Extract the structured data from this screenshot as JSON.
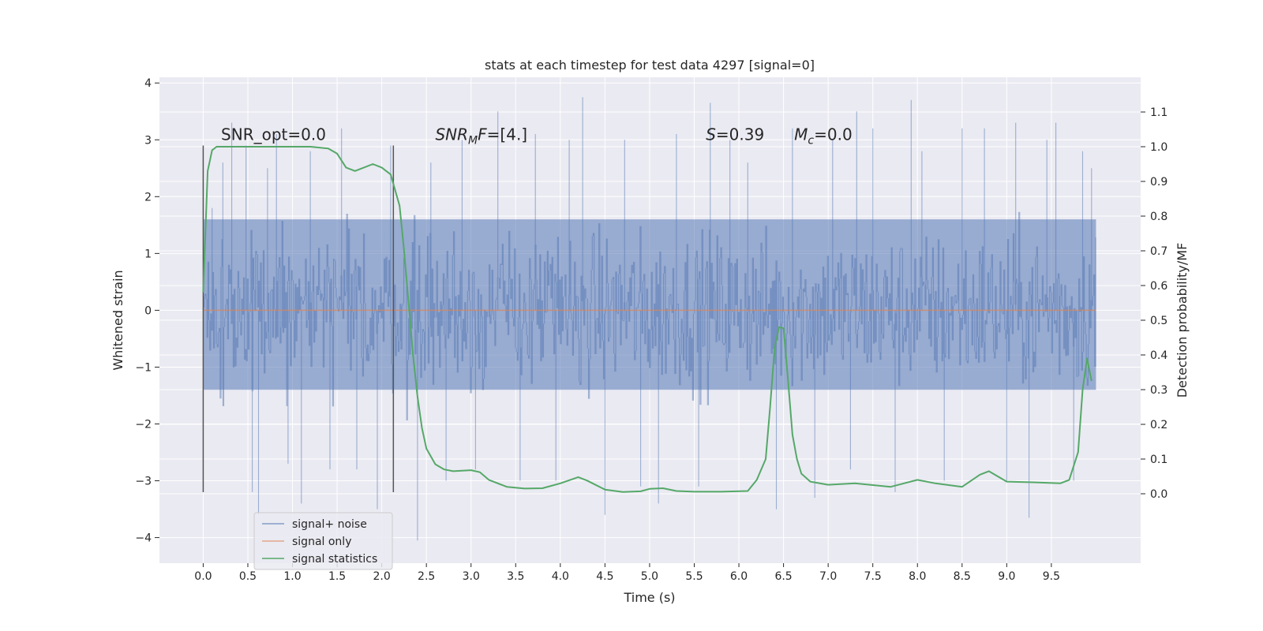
{
  "chart_data": {
    "type": "line",
    "title": "stats at each timestep for test data 4297 [signal=0]",
    "xlabel": "Time (s)",
    "ylabel": "Whitened strain",
    "ylabel_right": "Detection probability/MF",
    "xlim": [
      -0.49,
      10.5
    ],
    "ylim": [
      -4.45,
      4.1
    ],
    "ylim_right": [
      -0.2,
      1.2
    ],
    "x_ticks": [
      "0.0",
      "0.5",
      "1.0",
      "1.5",
      "2.0",
      "2.5",
      "3.0",
      "3.5",
      "4.0",
      "4.5",
      "5.0",
      "5.5",
      "6.0",
      "6.5",
      "7.0",
      "7.5",
      "8.0",
      "8.5",
      "9.0",
      "9.5"
    ],
    "y_ticks_left": [
      "4",
      "3",
      "2",
      "1",
      "0",
      "−1",
      "−2",
      "−3",
      "−4"
    ],
    "y_ticks_right": [
      "1.1",
      "1.0",
      "0.9",
      "0.8",
      "0.7",
      "0.6",
      "0.5",
      "0.4",
      "0.3",
      "0.2",
      "0.1",
      "0.0"
    ],
    "grid": true,
    "legend_placement": "lower-left",
    "annotations": [
      {
        "parts": [
          {
            "t": "SNR_opt=0.0",
            "i": false
          }
        ],
        "x": 0.2,
        "y": 3.0
      },
      {
        "parts": [
          {
            "t": "SNR",
            "i": true
          },
          {
            "t": "M",
            "i": true,
            "sub": true
          },
          {
            "t": "F",
            "i": true
          },
          {
            "t": "=[4.]",
            "i": false
          }
        ],
        "x": 2.6,
        "y": 3.0
      },
      {
        "parts": [
          {
            "t": "S",
            "i": true
          },
          {
            "t": "=0.39",
            "i": false
          }
        ],
        "x": 5.63,
        "y": 3.0
      },
      {
        "parts": [
          {
            "t": "M",
            "i": true
          },
          {
            "t": "c",
            "i": true,
            "sub": true
          },
          {
            "t": "=0.0",
            "i": false
          }
        ],
        "x": 6.62,
        "y": 3.0
      }
    ],
    "vlines": [
      {
        "x": 0.0,
        "ymin": -3.2,
        "ymax": 2.9
      },
      {
        "x": 2.13,
        "ymin": -3.2,
        "ymax": 2.9
      }
    ],
    "series": [
      {
        "name": "signal+ noise",
        "axis": "left",
        "color": "#4c72b0",
        "note": "noise band",
        "core_band": [
          -1.4,
          1.6
        ],
        "t_range": [
          0.0,
          10.0
        ],
        "spikes": [
          [
            0.1,
            1.8
          ],
          [
            0.22,
            2.6
          ],
          [
            0.32,
            3.3
          ],
          [
            0.48,
            2.9
          ],
          [
            0.55,
            -3.2
          ],
          [
            0.62,
            -3.6
          ],
          [
            0.72,
            2.5
          ],
          [
            0.82,
            3.1
          ],
          [
            0.95,
            -2.7
          ],
          [
            1.1,
            -3.4
          ],
          [
            1.2,
            2.8
          ],
          [
            1.42,
            -2.8
          ],
          [
            1.55,
            3.2
          ],
          [
            1.72,
            -2.8
          ],
          [
            1.95,
            -3.5
          ],
          [
            2.1,
            2.9
          ],
          [
            2.4,
            -4.05
          ],
          [
            2.55,
            2.6
          ],
          [
            2.72,
            -3.0
          ],
          [
            2.9,
            3.0
          ],
          [
            3.05,
            -2.8
          ],
          [
            3.3,
            3.5
          ],
          [
            3.55,
            -3.0
          ],
          [
            3.72,
            3.1
          ],
          [
            3.95,
            -3.0
          ],
          [
            4.1,
            3.0
          ],
          [
            4.25,
            3.75
          ],
          [
            4.5,
            -3.6
          ],
          [
            4.72,
            3.0
          ],
          [
            4.9,
            -3.1
          ],
          [
            5.1,
            -3.4
          ],
          [
            5.3,
            3.1
          ],
          [
            5.55,
            -3.1
          ],
          [
            5.68,
            3.65
          ],
          [
            5.9,
            3.0
          ],
          [
            6.1,
            2.6
          ],
          [
            6.42,
            -3.5
          ],
          [
            6.6,
            3.2
          ],
          [
            6.85,
            -3.3
          ],
          [
            7.05,
            3.0
          ],
          [
            7.25,
            -2.8
          ],
          [
            7.32,
            3.5
          ],
          [
            7.5,
            3.2
          ],
          [
            7.75,
            -3.2
          ],
          [
            7.93,
            3.7
          ],
          [
            8.05,
            2.8
          ],
          [
            8.3,
            -3.0
          ],
          [
            8.5,
            3.2
          ],
          [
            8.75,
            3.2
          ],
          [
            9.0,
            -3.0
          ],
          [
            9.1,
            3.3
          ],
          [
            9.25,
            -3.65
          ],
          [
            9.45,
            3.0
          ],
          [
            9.55,
            3.3
          ],
          [
            9.75,
            -3.0
          ],
          [
            9.85,
            2.8
          ],
          [
            9.95,
            2.5
          ]
        ]
      },
      {
        "name": "signal only",
        "axis": "left",
        "color": "#dd8452",
        "x": [
          0.0,
          10.0
        ],
        "y": [
          0.0,
          0.0
        ]
      },
      {
        "name": "signal statistics",
        "axis": "right",
        "color": "#55a868",
        "x": [
          0.0,
          0.05,
          0.1,
          0.15,
          0.25,
          0.4,
          0.6,
          0.8,
          1.0,
          1.2,
          1.4,
          1.5,
          1.6,
          1.7,
          1.8,
          1.9,
          2.0,
          2.1,
          2.2,
          2.25,
          2.3,
          2.35,
          2.4,
          2.45,
          2.5,
          2.6,
          2.7,
          2.8,
          3.0,
          3.1,
          3.2,
          3.4,
          3.6,
          3.8,
          4.0,
          4.2,
          4.3,
          4.5,
          4.7,
          4.9,
          5.0,
          5.15,
          5.3,
          5.5,
          5.8,
          6.1,
          6.2,
          6.3,
          6.35,
          6.4,
          6.45,
          6.5,
          6.55,
          6.6,
          6.65,
          6.7,
          6.8,
          7.0,
          7.3,
          7.7,
          8.0,
          8.2,
          8.5,
          8.7,
          8.8,
          9.0,
          9.3,
          9.6,
          9.7,
          9.8,
          9.85,
          9.9,
          9.95
        ],
        "y": [
          0.58,
          0.93,
          0.99,
          1.0,
          1.0,
          1.0,
          1.0,
          1.0,
          1.0,
          1.0,
          0.995,
          0.98,
          0.94,
          0.93,
          0.94,
          0.95,
          0.94,
          0.92,
          0.83,
          0.7,
          0.55,
          0.4,
          0.28,
          0.19,
          0.13,
          0.085,
          0.07,
          0.065,
          0.068,
          0.062,
          0.04,
          0.02,
          0.015,
          0.016,
          0.03,
          0.048,
          0.038,
          0.012,
          0.005,
          0.007,
          0.014,
          0.016,
          0.008,
          0.006,
          0.006,
          0.008,
          0.04,
          0.1,
          0.25,
          0.42,
          0.48,
          0.477,
          0.33,
          0.17,
          0.1,
          0.058,
          0.035,
          0.026,
          0.03,
          0.02,
          0.04,
          0.03,
          0.02,
          0.055,
          0.065,
          0.035,
          0.033,
          0.03,
          0.04,
          0.12,
          0.3,
          0.39,
          0.325
        ]
      }
    ]
  }
}
